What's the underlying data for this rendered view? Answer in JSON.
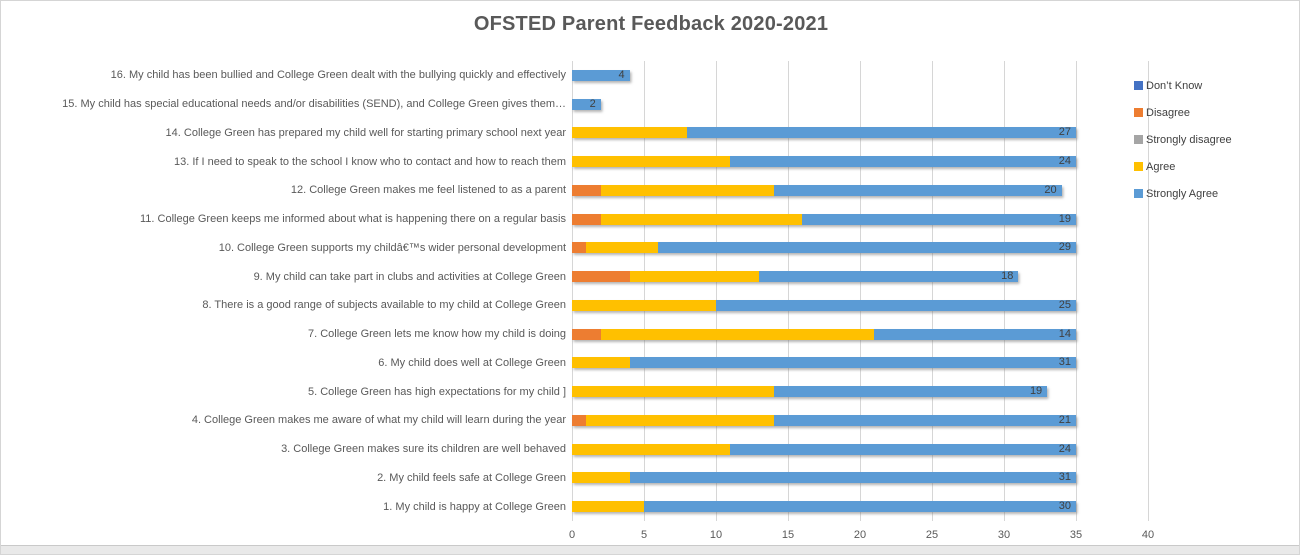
{
  "chart_data": {
    "type": "bar",
    "orientation": "horizontal",
    "stacked": true,
    "title": "OFSTED Parent Feedback 2020-2021",
    "x_axis": {
      "min": 0,
      "max": 40,
      "tick_step": 5,
      "ticks": [
        0,
        5,
        10,
        15,
        20,
        25,
        30,
        35,
        40
      ],
      "grid": true
    },
    "legend_position": "right",
    "series_order": [
      "dont_know",
      "disagree",
      "strongly_disagree",
      "agree",
      "strongly_agree"
    ],
    "legend": [
      {
        "key": "dont_know",
        "label": "Don’t Know",
        "color": "#4472C4"
      },
      {
        "key": "disagree",
        "label": "Disagree",
        "color": "#ED7D31"
      },
      {
        "key": "strongly_disagree",
        "label": "Strongly disagree",
        "color": "#A5A5A5"
      },
      {
        "key": "agree",
        "label": "Agree",
        "color": "#FFC000"
      },
      {
        "key": "strongly_agree",
        "label": "Strongly Agree",
        "color": "#5B9BD5"
      }
    ],
    "rows": [
      {
        "category": "16. My child has been bullied and College Green dealt with the bullying quickly and effectively",
        "values": {
          "dont_know": 0,
          "disagree": 0,
          "strongly_disagree": 0,
          "agree": 0,
          "strongly_agree": 4
        },
        "data_label": "4"
      },
      {
        "category": "15. My child has special educational needs and/or disabilities (SEND), and College Green gives them…",
        "values": {
          "dont_know": 0,
          "disagree": 0,
          "strongly_disagree": 0,
          "agree": 0,
          "strongly_agree": 2
        },
        "data_label": "2"
      },
      {
        "category": "14. College Green has prepared my child well for starting primary school next year",
        "values": {
          "dont_know": 0,
          "disagree": 0,
          "strongly_disagree": 0,
          "agree": 8,
          "strongly_agree": 27
        },
        "data_label": "27"
      },
      {
        "category": "13. If I need to speak to the school I know who to contact and how to reach them",
        "values": {
          "dont_know": 0,
          "disagree": 0,
          "strongly_disagree": 0,
          "agree": 11,
          "strongly_agree": 24
        },
        "data_label": "24"
      },
      {
        "category": "12. College Green makes me feel listened to as a parent",
        "values": {
          "dont_know": 0,
          "disagree": 2,
          "strongly_disagree": 0,
          "agree": 12,
          "strongly_agree": 20
        },
        "data_label": "20"
      },
      {
        "category": "11. College Green keeps me informed about what is happening there on a regular basis",
        "values": {
          "dont_know": 0,
          "disagree": 2,
          "strongly_disagree": 0,
          "agree": 14,
          "strongly_agree": 19
        },
        "data_label": "19"
      },
      {
        "category": "10. College Green supports my childâ€™s wider personal development",
        "values": {
          "dont_know": 0,
          "disagree": 1,
          "strongly_disagree": 0,
          "agree": 5,
          "strongly_agree": 29
        },
        "data_label": "29"
      },
      {
        "category": "9. My child can take part in clubs and activities at College Green",
        "values": {
          "dont_know": 0,
          "disagree": 4,
          "strongly_disagree": 0,
          "agree": 9,
          "strongly_agree": 18
        },
        "data_label": "18"
      },
      {
        "category": "8. There is a good range of subjects available to my child at College Green",
        "values": {
          "dont_know": 0,
          "disagree": 0,
          "strongly_disagree": 0,
          "agree": 10,
          "strongly_agree": 25
        },
        "data_label": "25"
      },
      {
        "category": "7. College Green lets me know how my child is doing",
        "values": {
          "dont_know": 0,
          "disagree": 2,
          "strongly_disagree": 0,
          "agree": 19,
          "strongly_agree": 14
        },
        "data_label": "14"
      },
      {
        "category": "6. My child does well at College Green",
        "values": {
          "dont_know": 0,
          "disagree": 0,
          "strongly_disagree": 0,
          "agree": 4,
          "strongly_agree": 31
        },
        "data_label": "31"
      },
      {
        "category": "5. College Green has high expectations for my child ]",
        "values": {
          "dont_know": 0,
          "disagree": 0,
          "strongly_disagree": 0,
          "agree": 14,
          "strongly_agree": 19
        },
        "data_label": "19"
      },
      {
        "category": "4. College Green makes me aware of what my child will learn during the year",
        "values": {
          "dont_know": 0,
          "disagree": 1,
          "strongly_disagree": 0,
          "agree": 13,
          "strongly_agree": 21
        },
        "data_label": "21"
      },
      {
        "category": "3. College Green makes sure its children are well behaved",
        "values": {
          "dont_know": 0,
          "disagree": 0,
          "strongly_disagree": 0,
          "agree": 11,
          "strongly_agree": 24
        },
        "data_label": "24"
      },
      {
        "category": "2. My child feels safe at College Green",
        "values": {
          "dont_know": 0,
          "disagree": 0,
          "strongly_disagree": 0,
          "agree": 4,
          "strongly_agree": 31
        },
        "data_label": "31"
      },
      {
        "category": "1. My child is happy at College Green",
        "values": {
          "dont_know": 0,
          "disagree": 0,
          "strongly_disagree": 0,
          "agree": 5,
          "strongly_agree": 30
        },
        "data_label": "30"
      }
    ]
  }
}
